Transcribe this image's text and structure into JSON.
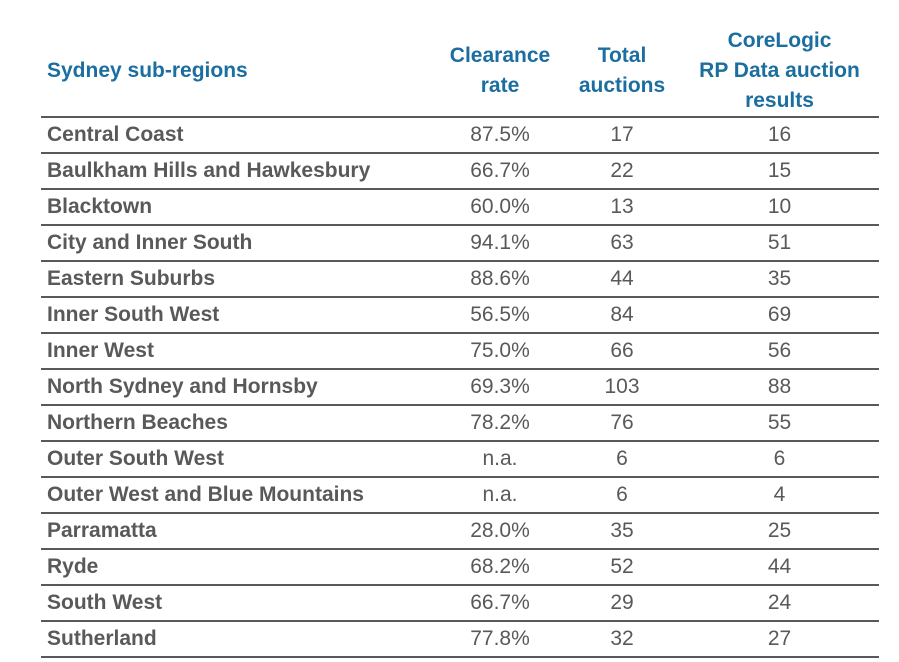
{
  "table": {
    "headers": {
      "region": "Sydney sub-regions",
      "clearance": [
        "Clearance",
        "rate"
      ],
      "total": [
        "Total",
        "auctions"
      ],
      "rp": [
        "CoreLogic",
        "RP Data auction",
        "results"
      ]
    },
    "rows": [
      {
        "region": "Central Coast",
        "clearance": "87.5%",
        "total": "17",
        "rp": "16"
      },
      {
        "region": "Baulkham Hills and Hawkesbury",
        "clearance": "66.7%",
        "total": "22",
        "rp": "15"
      },
      {
        "region": "Blacktown",
        "clearance": "60.0%",
        "total": "13",
        "rp": "10"
      },
      {
        "region": "City and Inner South",
        "clearance": "94.1%",
        "total": "63",
        "rp": "51"
      },
      {
        "region": "Eastern Suburbs",
        "clearance": "88.6%",
        "total": "44",
        "rp": "35"
      },
      {
        "region": "Inner South West",
        "clearance": "56.5%",
        "total": "84",
        "rp": "69"
      },
      {
        "region": "Inner West",
        "clearance": "75.0%",
        "total": "66",
        "rp": "56"
      },
      {
        "region": "North Sydney and Hornsby",
        "clearance": "69.3%",
        "total": "103",
        "rp": "88"
      },
      {
        "region": "Northern Beaches",
        "clearance": "78.2%",
        "total": "76",
        "rp": "55"
      },
      {
        "region": "Outer South West",
        "clearance": "n.a.",
        "total": "6",
        "rp": "6"
      },
      {
        "region": "Outer West and Blue Mountains",
        "clearance": "n.a.",
        "total": "6",
        "rp": "4"
      },
      {
        "region": "Parramatta",
        "clearance": "28.0%",
        "total": "35",
        "rp": "25"
      },
      {
        "region": "Ryde",
        "clearance": "68.2%",
        "total": "52",
        "rp": "44"
      },
      {
        "region": "South West",
        "clearance": "66.7%",
        "total": "29",
        "rp": "24"
      },
      {
        "region": "Sutherland",
        "clearance": "77.8%",
        "total": "32",
        "rp": "27"
      }
    ]
  },
  "colors": {
    "header_text": "#1b6ea0",
    "body_text": "#595959",
    "rule": "#595959"
  }
}
